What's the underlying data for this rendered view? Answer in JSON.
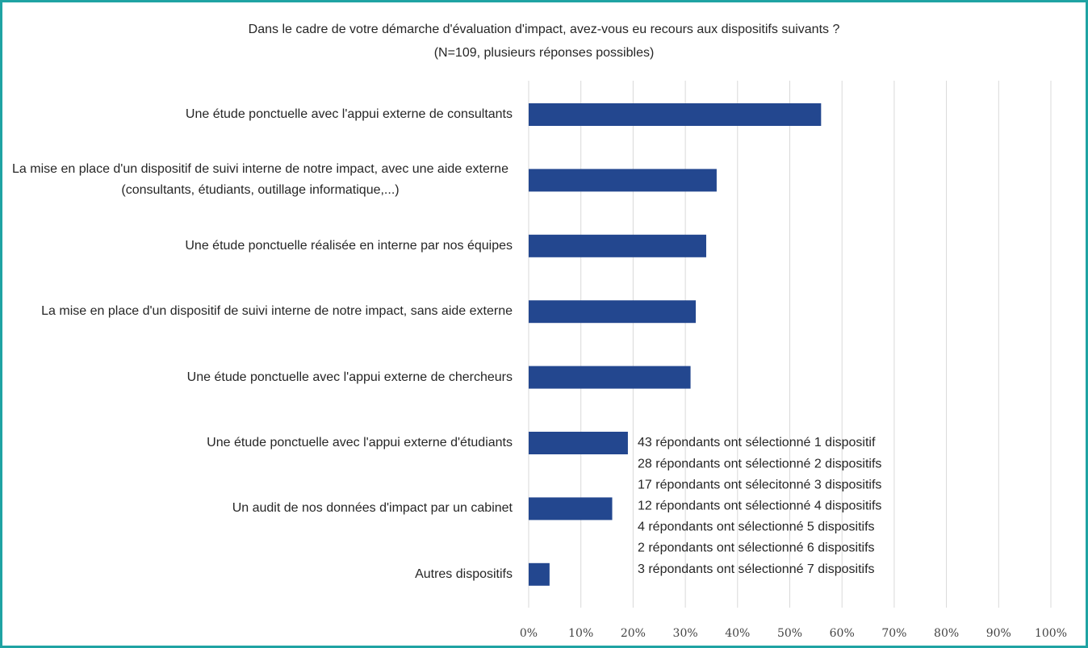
{
  "chart_data": {
    "type": "bar",
    "orientation": "horizontal",
    "title": "Dans le cadre de votre démarche d'évaluation d'impact, avez-vous eu recours aux dispositifs suivants ?",
    "subtitle": "(N=109, plusieurs réponses possibles)",
    "categories": [
      "Une étude ponctuelle avec l'appui externe de consultants",
      "La mise en place d'un dispositif de suivi interne de notre impact, avec une aide externe (consultants, étudiants, outillage informatique,...)",
      "Une étude ponctuelle réalisée en interne par nos équipes",
      "La mise en place d'un dispositif de suivi interne de notre impact, sans aide externe",
      "Une étude ponctuelle avec l'appui externe de chercheurs",
      "Une étude ponctuelle avec l'appui externe d'étudiants",
      "Un audit de nos données d'impact par un cabinet",
      "Autres dispositifs"
    ],
    "values": [
      56,
      36,
      34,
      32,
      31,
      19,
      16,
      4
    ],
    "color": "#23478f",
    "xlim": [
      0,
      100
    ],
    "xticks": [
      {
        "value": 0,
        "label": "0%"
      },
      {
        "value": 10,
        "label": "10%"
      },
      {
        "value": 20,
        "label": "20%"
      },
      {
        "value": 30,
        "label": "30%"
      },
      {
        "value": 40,
        "label": "40%"
      },
      {
        "value": 50,
        "label": "50%"
      },
      {
        "value": 60,
        "label": "60%"
      },
      {
        "value": 70,
        "label": "70%"
      },
      {
        "value": 80,
        "label": "80%"
      },
      {
        "value": 90,
        "label": "90%"
      },
      {
        "value": 100,
        "label": "100%"
      }
    ],
    "grid": true,
    "annotations": [
      "43 répondants ont sélectionné 1 dispositif",
      "28 répondants ont sélectionné 2 dispositifs",
      "17 répondants ont sélecitonné 3 dispositifs",
      "12 répondants ont sélectionné 4 dispositifs",
      "4 répondants ont sélectionné 5 dispositifs",
      "2 répondants ont sélectionné 6 dispositifs",
      "3 répondants ont sélectionné 7 dispositifs"
    ]
  }
}
